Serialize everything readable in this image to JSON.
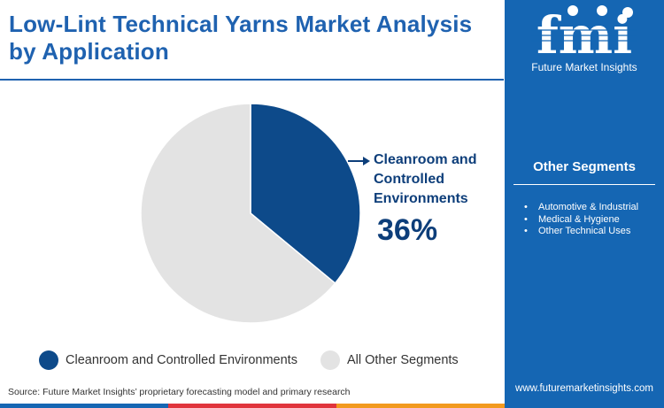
{
  "header": {
    "title": "Low-Lint Technical Yarns Market Analysis by Application"
  },
  "brand": {
    "logo_text": "fmi",
    "company": "Future Market Insights",
    "website": "www.futuremarketinsights.com",
    "sidebar_color": "#1566b3"
  },
  "other_segments": {
    "title": "Other Segments",
    "items": [
      "Automotive & Industrial",
      "Medical & Hygiene",
      "Other Technical Uses"
    ]
  },
  "callout": {
    "label": "Cleanroom and Controlled Environments",
    "value": "36%"
  },
  "source": "Source: Future Market Insights’ proprietary forecasting model and primary research",
  "chart_data": {
    "type": "pie",
    "categories": [
      "Cleanroom and Controlled Environments",
      "All Other Segments"
    ],
    "values": [
      36,
      64
    ],
    "colors": [
      "#0d4a8a",
      "#e3e3e3"
    ],
    "legend_position": "bottom"
  }
}
